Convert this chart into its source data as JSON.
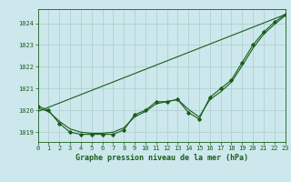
{
  "title": "Graphe pression niveau de la mer (hPa)",
  "bg_color": "#cce8ec",
  "grid_color": "#aacccc",
  "line_color": "#1a5c1a",
  "xlim": [
    0,
    23
  ],
  "ylim": [
    1018.55,
    1024.65
  ],
  "yticks": [
    1019,
    1020,
    1021,
    1022,
    1023,
    1024
  ],
  "xticks": [
    0,
    1,
    2,
    3,
    4,
    5,
    6,
    7,
    8,
    9,
    10,
    11,
    12,
    13,
    14,
    15,
    16,
    17,
    18,
    19,
    20,
    21,
    22,
    23
  ],
  "x": [
    0,
    1,
    2,
    3,
    4,
    5,
    6,
    7,
    8,
    9,
    10,
    11,
    12,
    13,
    14,
    15,
    16,
    17,
    18,
    19,
    20,
    21,
    22,
    23
  ],
  "y_main": [
    1020.2,
    1020.0,
    1019.4,
    1019.0,
    1018.9,
    1018.9,
    1018.9,
    1018.9,
    1019.1,
    1019.8,
    1020.0,
    1020.4,
    1020.4,
    1020.5,
    1019.9,
    1019.6,
    1020.6,
    1021.0,
    1021.4,
    1022.2,
    1023.0,
    1023.6,
    1024.05,
    1024.4
  ],
  "y_smooth": [
    1020.1,
    1019.95,
    1019.5,
    1019.15,
    1019.0,
    1018.95,
    1018.95,
    1019.0,
    1019.2,
    1019.7,
    1019.95,
    1020.3,
    1020.4,
    1020.5,
    1020.05,
    1019.7,
    1020.5,
    1020.85,
    1021.3,
    1022.05,
    1022.85,
    1023.5,
    1023.95,
    1024.35
  ],
  "trend_x": [
    0,
    23
  ],
  "trend_y": [
    1019.95,
    1024.4
  ]
}
